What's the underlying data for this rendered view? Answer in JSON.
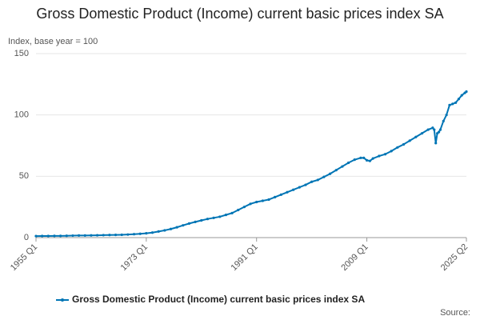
{
  "chart_data": {
    "type": "line",
    "title": "Gross Domestic Product (Income) current basic prices index SA",
    "y_label": "Index, base year = 100",
    "source": "Source:",
    "x": [
      1955,
      1956,
      1957,
      1958,
      1959,
      1960,
      1961,
      1962,
      1963,
      1964,
      1965,
      1966,
      1967,
      1968,
      1969,
      1970,
      1971,
      1972,
      1973,
      1974,
      1975,
      1976,
      1977,
      1978,
      1979,
      1980,
      1981,
      1982,
      1983,
      1984,
      1985,
      1986,
      1987,
      1988,
      1989,
      1990,
      1991,
      1992,
      1993,
      1994,
      1995,
      1996,
      1997,
      1998,
      1999,
      2000,
      2001,
      2002,
      2003,
      2004,
      2005,
      2006,
      2007,
      2008,
      2008.5,
      2009,
      2009.5,
      2010,
      2011,
      2012,
      2013,
      2014,
      2015,
      2016,
      2017,
      2018,
      2019,
      2019.75,
      2020,
      2020.25,
      2020.5,
      2020.75,
      2021,
      2021.5,
      2022,
      2022.5,
      2023,
      2023.5,
      2024,
      2024.5,
      2025,
      2025.25
    ],
    "series": [
      {
        "name": "Gross Domestic Product (Income) current basic prices index SA",
        "color": "#0075b5",
        "values": [
          1.2,
          1.3,
          1.3,
          1.4,
          1.4,
          1.5,
          1.6,
          1.7,
          1.7,
          1.8,
          1.9,
          2.0,
          2.1,
          2.2,
          2.3,
          2.5,
          2.8,
          3.1,
          3.5,
          4.1,
          5.0,
          5.9,
          7.0,
          8.4,
          10.0,
          11.5,
          12.8,
          14.0,
          15.2,
          16.1,
          17.0,
          18.5,
          20.0,
          22.5,
          25.0,
          27.5,
          29.0,
          30.0,
          31.0,
          33.0,
          35.0,
          37.0,
          39.0,
          41.0,
          43.0,
          45.5,
          47.0,
          49.5,
          52.0,
          55.0,
          58.0,
          61.0,
          63.5,
          65.0,
          65.0,
          63.0,
          62.5,
          64.5,
          66.5,
          68.0,
          70.5,
          73.5,
          76.0,
          79.0,
          82.0,
          85.0,
          88.0,
          89.5,
          88.0,
          77.0,
          85.0,
          86.0,
          88.0,
          95.0,
          100.0,
          108.0,
          109.0,
          110.0,
          113.0,
          116.0,
          118.0,
          119.0
        ]
      }
    ],
    "xlim": [
      1955,
      2025.25
    ],
    "xticks": [
      {
        "value": 1955,
        "label": "1955 Q1"
      },
      {
        "value": 1973,
        "label": "1973 Q1"
      },
      {
        "value": 1991,
        "label": "1991 Q1"
      },
      {
        "value": 2009,
        "label": "2009 Q1"
      },
      {
        "value": 2025.25,
        "label": "2025 Q2"
      }
    ],
    "ylim": [
      0,
      150
    ],
    "yticks": [
      0,
      50,
      100,
      150
    ],
    "grid": true,
    "legend": "bottom"
  }
}
